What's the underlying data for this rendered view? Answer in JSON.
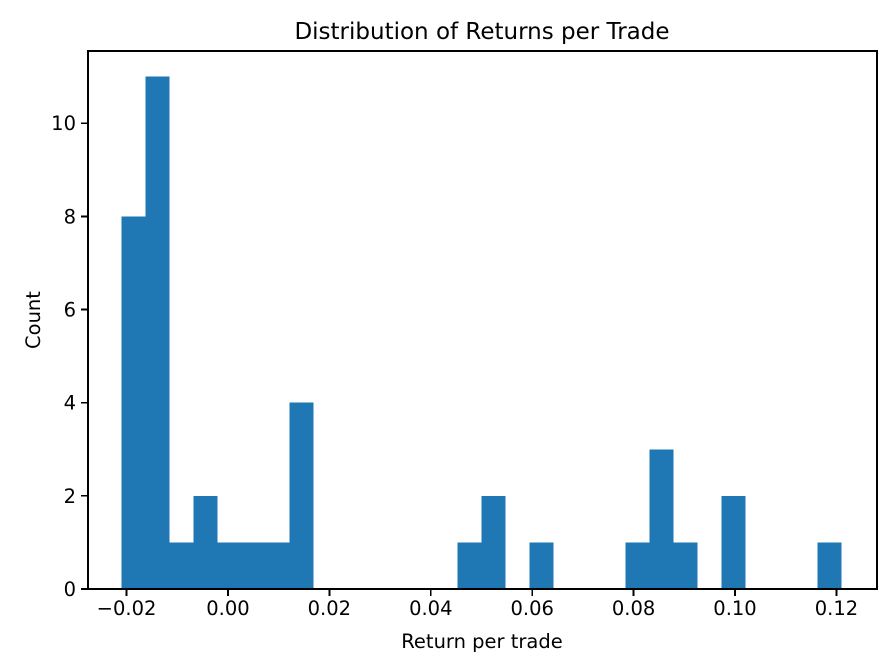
{
  "figure": {
    "background_color": "#ffffff"
  },
  "chart_data": {
    "type": "bar",
    "subtype": "histogram",
    "title": "Distribution of Returns per Trade",
    "xlabel": "Return per trade",
    "ylabel": "Count",
    "grid": false,
    "legend": null,
    "bar_color": "#1f77b4",
    "axis_color": "#000000",
    "n_bins": 30,
    "bin_start": -0.021,
    "bin_width": 0.0047333,
    "counts": [
      8,
      11,
      1,
      2,
      1,
      1,
      1,
      4,
      0,
      0,
      0,
      0,
      0,
      0,
      1,
      2,
      0,
      1,
      0,
      0,
      0,
      1,
      3,
      1,
      0,
      2,
      0,
      0,
      0,
      1
    ],
    "xlim": [
      -0.0276,
      0.128
    ],
    "ylim": [
      0,
      11.55
    ],
    "xticks": {
      "values": [
        -0.02,
        0.0,
        0.02,
        0.04,
        0.06,
        0.08,
        0.1,
        0.12
      ],
      "labels": [
        "−0.02",
        "0.00",
        "0.02",
        "0.04",
        "0.06",
        "0.08",
        "0.10",
        "0.12"
      ]
    },
    "yticks": {
      "values": [
        0,
        2,
        4,
        6,
        8,
        10
      ],
      "labels": [
        "0",
        "2",
        "4",
        "6",
        "8",
        "10"
      ]
    }
  }
}
